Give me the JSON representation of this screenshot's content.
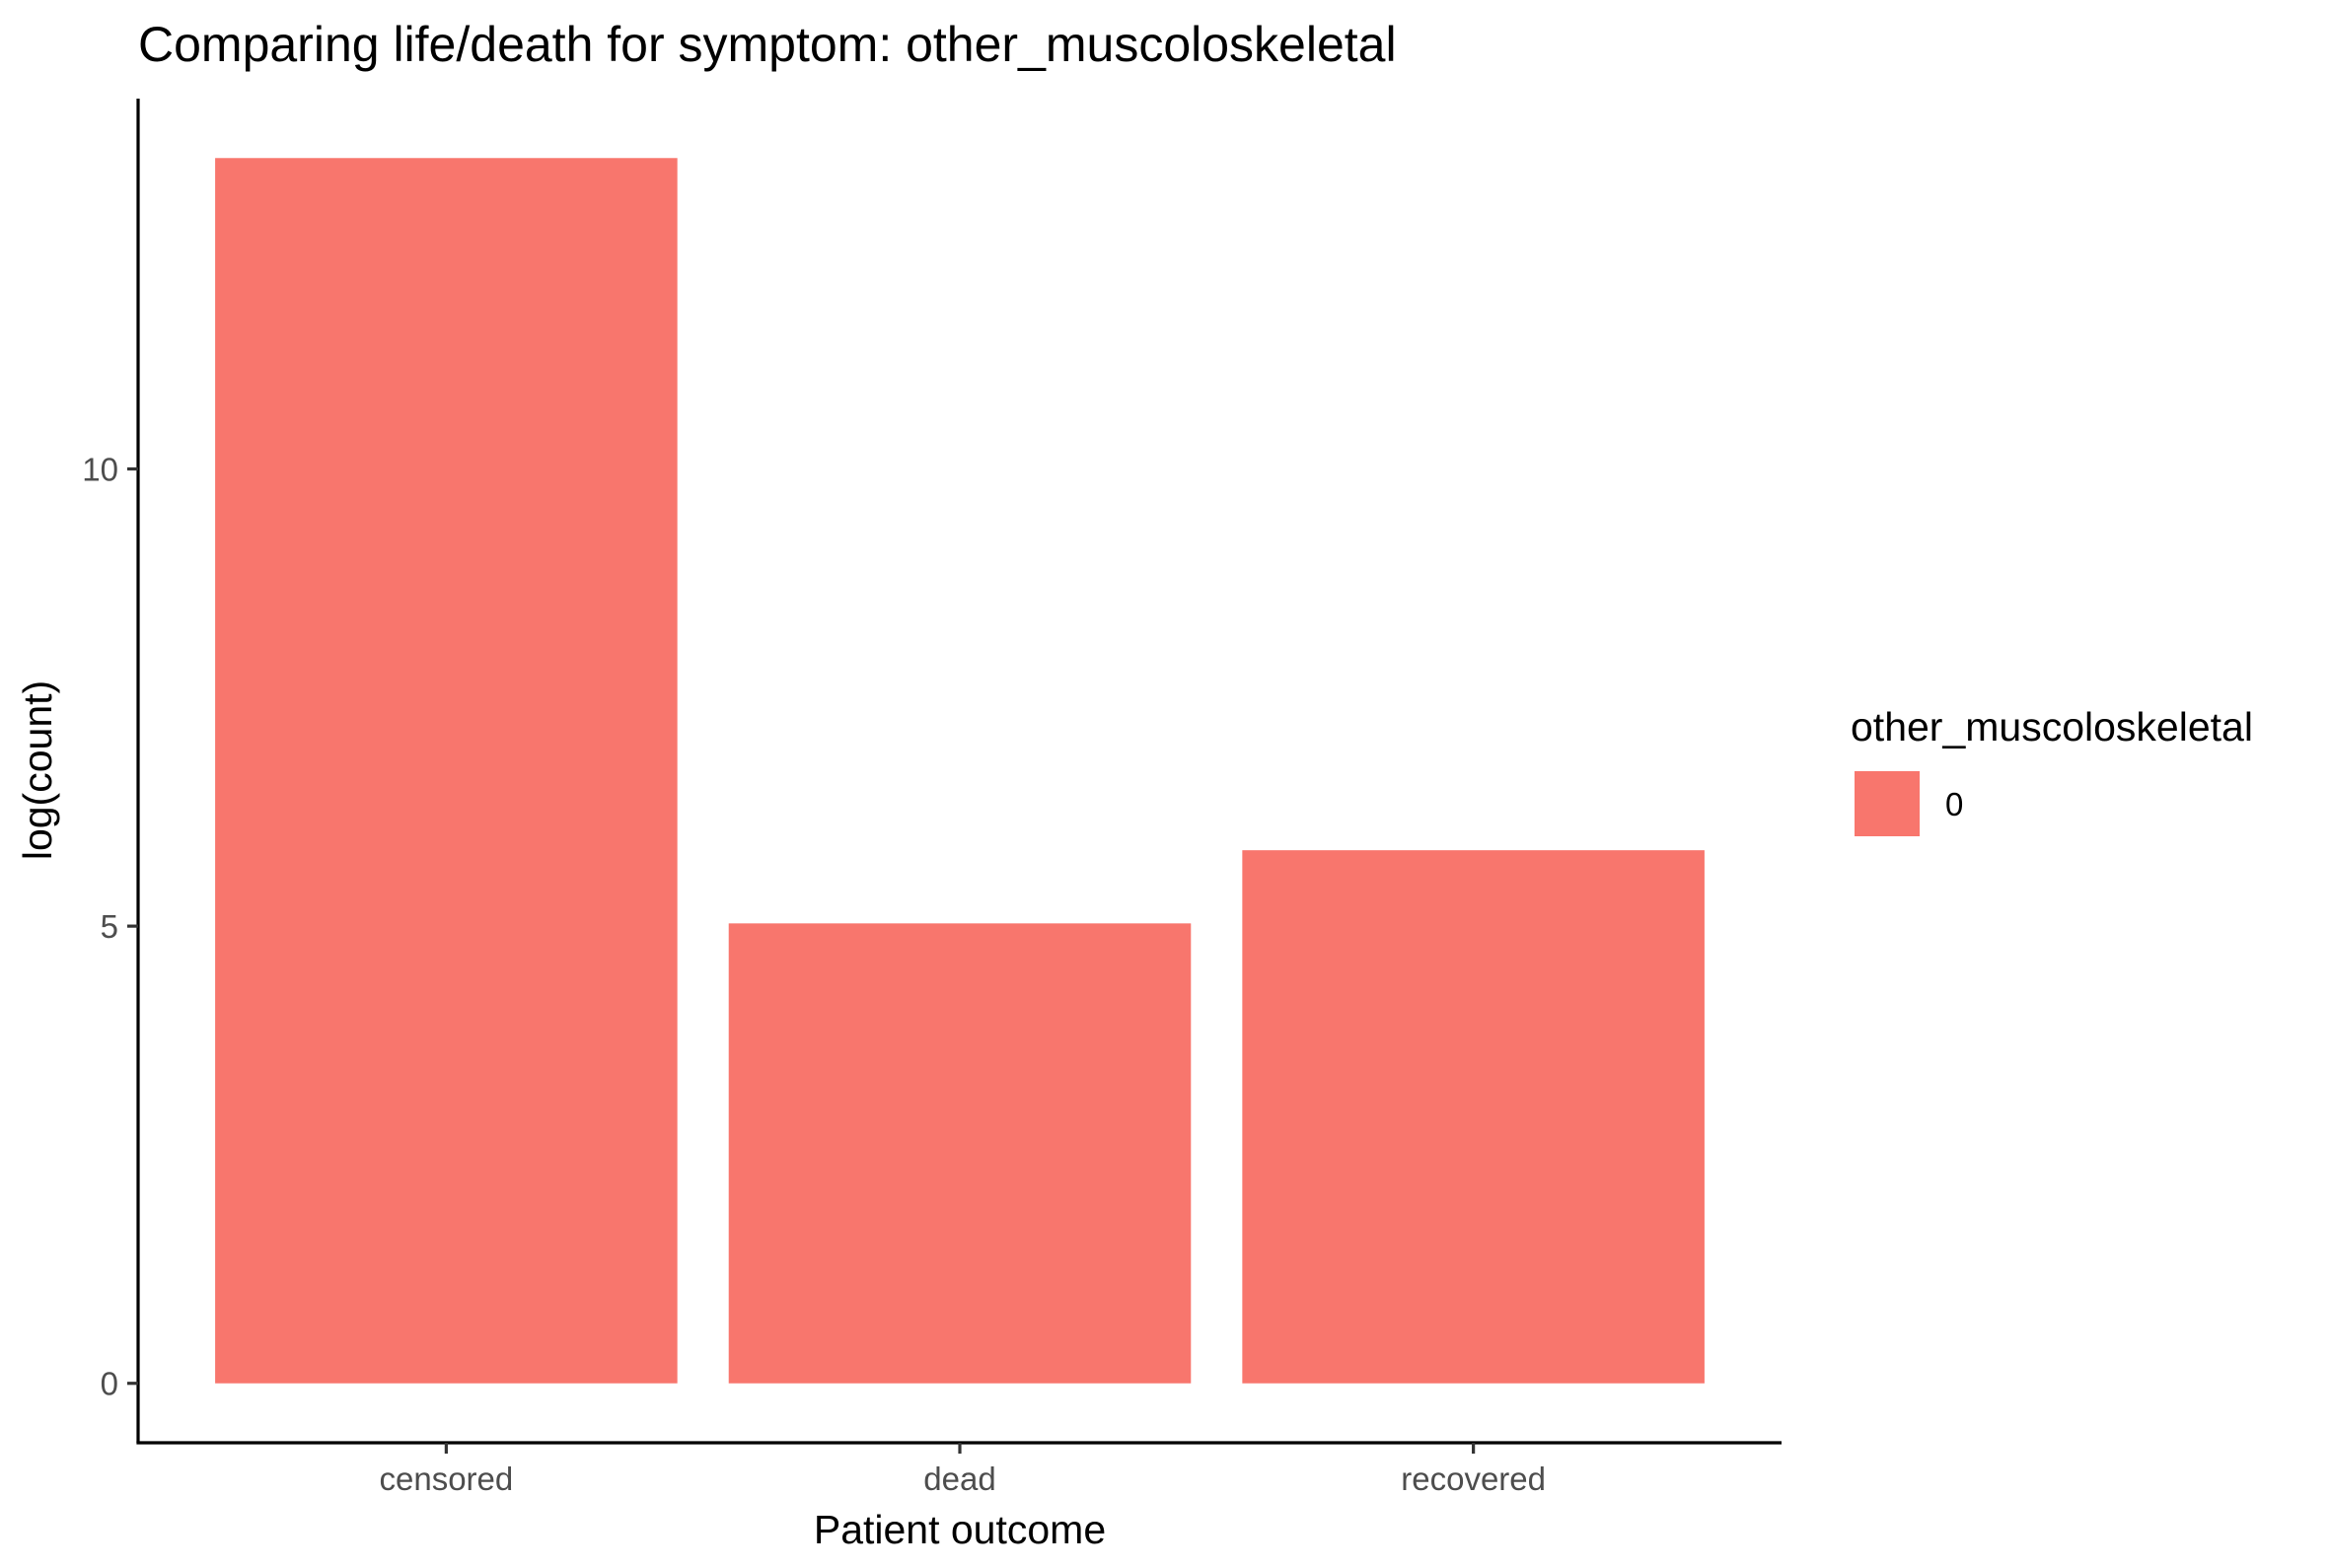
{
  "chart_data": {
    "type": "bar",
    "title": "Comparing life/death for symptom: other_muscoloskeletal",
    "xlabel": "Patient outcome",
    "ylabel": "log(count)",
    "categories": [
      "censored",
      "dead",
      "recovered"
    ],
    "series": [
      {
        "name": "0",
        "values": [
          13.4,
          5.03,
          5.83
        ]
      }
    ],
    "ylim": [
      -0.65,
      14.05
    ],
    "yticks": [
      0,
      5,
      10
    ],
    "grid": false,
    "legend": {
      "title": "other_muscoloskeletal",
      "placement": "right",
      "entries": [
        "0"
      ]
    },
    "colors": {
      "bar": "#F8766D"
    }
  }
}
